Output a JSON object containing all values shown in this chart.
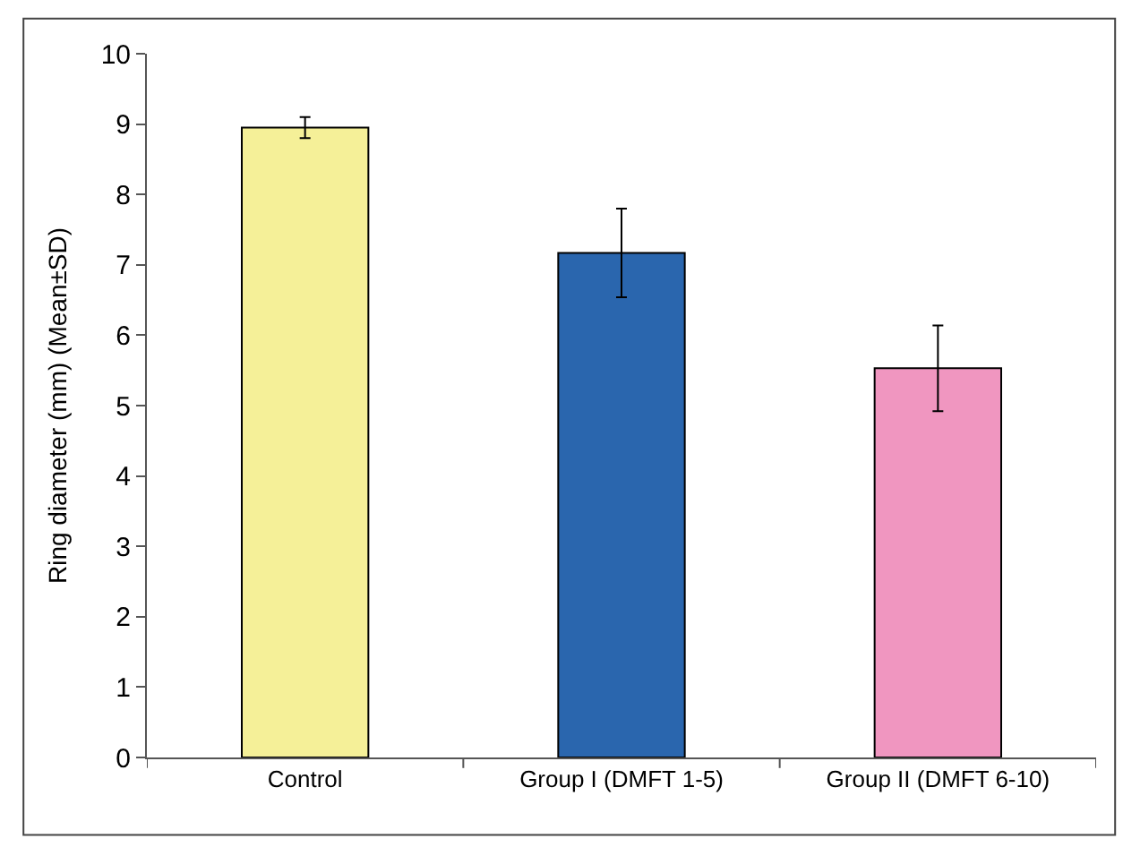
{
  "chart_data": {
    "type": "bar",
    "ylabel": "Ring diameter (mm) (Mean±SD)",
    "categories": [
      "Control",
      "Group I (DMFT 1-5)",
      "Group II (DMFT 6-10)"
    ],
    "values": [
      8.95,
      7.17,
      5.53
    ],
    "colors": [
      "#f5f098",
      "#2a66ae",
      "#f096c0"
    ],
    "errors": [
      0.15,
      0.63,
      0.61
    ],
    "ylim": [
      0,
      10
    ],
    "yticks": [
      0,
      1,
      2,
      3,
      4,
      5,
      6,
      7,
      8,
      9,
      10
    ]
  }
}
